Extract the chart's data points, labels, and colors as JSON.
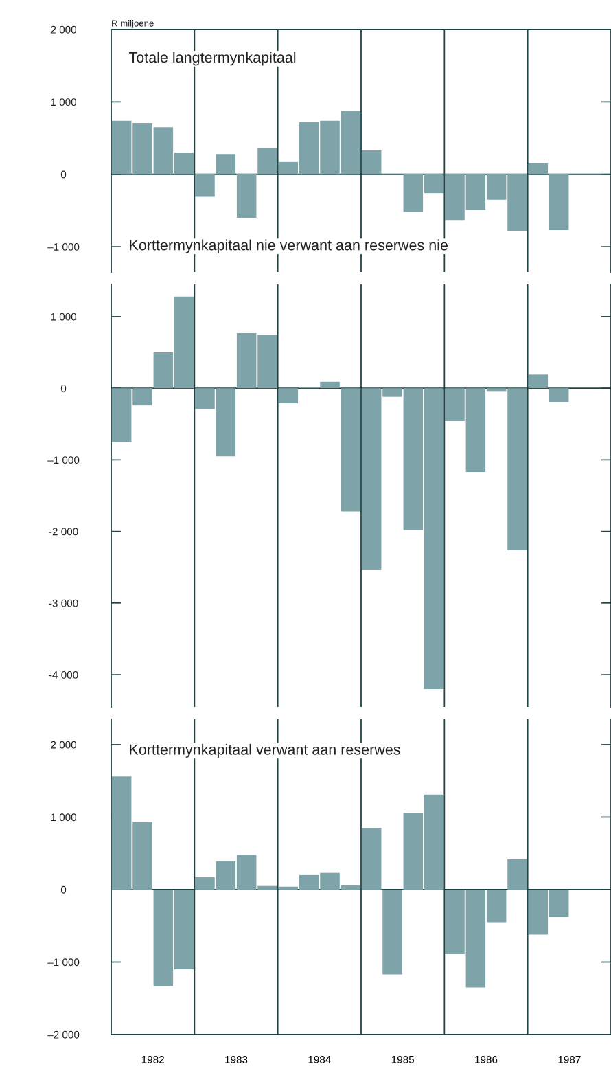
{
  "chart_data": [
    {
      "type": "bar",
      "title": "Totale langtermynkapitaal",
      "ylabel": "R miljoene",
      "x": [
        1982.125,
        1982.375,
        1982.625,
        1982.875,
        1983.125,
        1983.375,
        1983.625,
        1983.875,
        1984.125,
        1984.375,
        1984.625,
        1984.875,
        1985.125,
        1985.375,
        1985.625,
        1985.875,
        1986.125,
        1986.375,
        1986.625,
        1986.875,
        1987.125,
        1987.375
      ],
      "values": [
        740,
        710,
        650,
        300,
        -310,
        280,
        -600,
        360,
        170,
        720,
        740,
        870,
        330,
        null,
        -520,
        -260,
        -630,
        -490,
        -350,
        -780,
        150,
        -770
      ],
      "color": "#7ea4aa",
      "xlim": [
        1982,
        1988
      ],
      "ylim": [
        -1350,
        2000
      ],
      "yticks": [
        {
          "value": 2000,
          "label": "2 000"
        },
        {
          "value": 1000,
          "label": "1 000"
        },
        0,
        {
          "value": -1000,
          "label": "–1 000"
        }
      ],
      "tick_labels": "y",
      "grid": false,
      "legend": false,
      "ref_lines": [
        {
          "axis": "y",
          "value": 0
        },
        {
          "axis": "x",
          "value": 1983
        },
        {
          "axis": "x",
          "value": 1984
        },
        {
          "axis": "x",
          "value": 1985
        },
        {
          "axis": "x",
          "value": 1986
        },
        {
          "axis": "x",
          "value": 1987
        }
      ]
    },
    {
      "type": "bar",
      "title": "Korttermynkapitaal nie verwant aan reserwes nie",
      "x": [
        1982.125,
        1982.375,
        1982.625,
        1982.875,
        1983.125,
        1983.375,
        1983.625,
        1983.875,
        1984.125,
        1984.375,
        1984.625,
        1984.875,
        1985.125,
        1985.375,
        1985.625,
        1985.875,
        1986.125,
        1986.375,
        1986.625,
        1986.875,
        1987.125,
        1987.375
      ],
      "values": [
        -750,
        -240,
        500,
        1280,
        -290,
        -950,
        770,
        750,
        -210,
        20,
        90,
        -1720,
        -2540,
        -120,
        -1980,
        -4200,
        -460,
        -1170,
        -40,
        -2260,
        190,
        -190
      ],
      "color": "#7ea4aa",
      "xlim": [
        1982,
        1988
      ],
      "ylim": [
        -4450,
        1450
      ],
      "yticks": [
        {
          "value": 1000,
          "label": "1 000"
        },
        0,
        {
          "value": -1000,
          "label": "–1 000"
        },
        {
          "value": -2000,
          "label": "-2 000"
        },
        {
          "value": -3000,
          "label": "-3 000"
        },
        {
          "value": -4000,
          "label": "-4 000"
        }
      ],
      "tick_labels": "y",
      "grid": false,
      "legend": false,
      "ref_lines": [
        {
          "axis": "y",
          "value": 0
        },
        {
          "axis": "x",
          "value": 1983
        },
        {
          "axis": "x",
          "value": 1984
        },
        {
          "axis": "x",
          "value": 1985
        },
        {
          "axis": "x",
          "value": 1986
        },
        {
          "axis": "x",
          "value": 1987
        }
      ]
    },
    {
      "type": "bar",
      "title": "Korttermynkapitaal verwant aan reserwes",
      "x": [
        1982.125,
        1982.375,
        1982.625,
        1982.875,
        1983.125,
        1983.375,
        1983.625,
        1983.875,
        1984.125,
        1984.375,
        1984.625,
        1984.875,
        1985.125,
        1985.375,
        1985.625,
        1985.875,
        1986.125,
        1986.375,
        1986.625,
        1986.875,
        1987.125,
        1987.375
      ],
      "values": [
        1560,
        930,
        -1330,
        -1100,
        170,
        390,
        480,
        50,
        40,
        200,
        230,
        60,
        850,
        -1170,
        1060,
        1310,
        -890,
        -1350,
        -450,
        420,
        -620,
        -380
      ],
      "color": "#7ea4aa",
      "xlim": [
        1982,
        1988
      ],
      "xticks": [
        {
          "value": 1982.5,
          "label": "1982"
        },
        {
          "value": 1983.5,
          "label": "1983"
        },
        {
          "value": 1984.5,
          "label": "1984"
        },
        {
          "value": 1985.5,
          "label": "1985"
        },
        {
          "value": 1986.5,
          "label": "1986"
        },
        {
          "value": 1987.5,
          "label": "1987"
        }
      ],
      "ylim": [
        -2000,
        2350
      ],
      "yticks": [
        {
          "value": 2000,
          "label": "2 000"
        },
        {
          "value": 1000,
          "label": "1 000"
        },
        0,
        {
          "value": -1000,
          "label": "–1 000"
        },
        {
          "value": -2000,
          "label": "–2 000"
        }
      ],
      "grid": false,
      "legend": false,
      "ref_lines": [
        {
          "axis": "y",
          "value": 0
        },
        {
          "axis": "x",
          "value": 1983
        },
        {
          "axis": "x",
          "value": 1984
        },
        {
          "axis": "x",
          "value": 1985
        },
        {
          "axis": "x",
          "value": 1986
        },
        {
          "axis": "x",
          "value": 1987
        }
      ]
    }
  ]
}
